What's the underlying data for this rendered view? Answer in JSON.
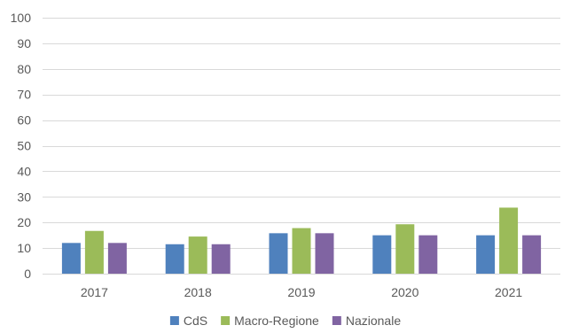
{
  "chart_data": {
    "type": "bar",
    "categories": [
      "2017",
      "2018",
      "2019",
      "2020",
      "2021"
    ],
    "series": [
      {
        "name": "CdS",
        "values": [
          12,
          11.5,
          15.8,
          15,
          15
        ],
        "color": "#4f81bd"
      },
      {
        "name": "Macro-Regione",
        "values": [
          16.7,
          14.5,
          17.8,
          19.3,
          25.8
        ],
        "color": "#9bbb59"
      },
      {
        "name": "Nazionale",
        "values": [
          12,
          11.5,
          15.8,
          15,
          15
        ],
        "color": "#8064a2"
      }
    ],
    "ylim": [
      0,
      100
    ],
    "yticks": [
      0,
      10,
      20,
      30,
      40,
      50,
      60,
      70,
      80,
      90,
      100
    ],
    "grid": true,
    "legend_position": "bottom-center",
    "gridline_color": "#d9d9d9"
  }
}
